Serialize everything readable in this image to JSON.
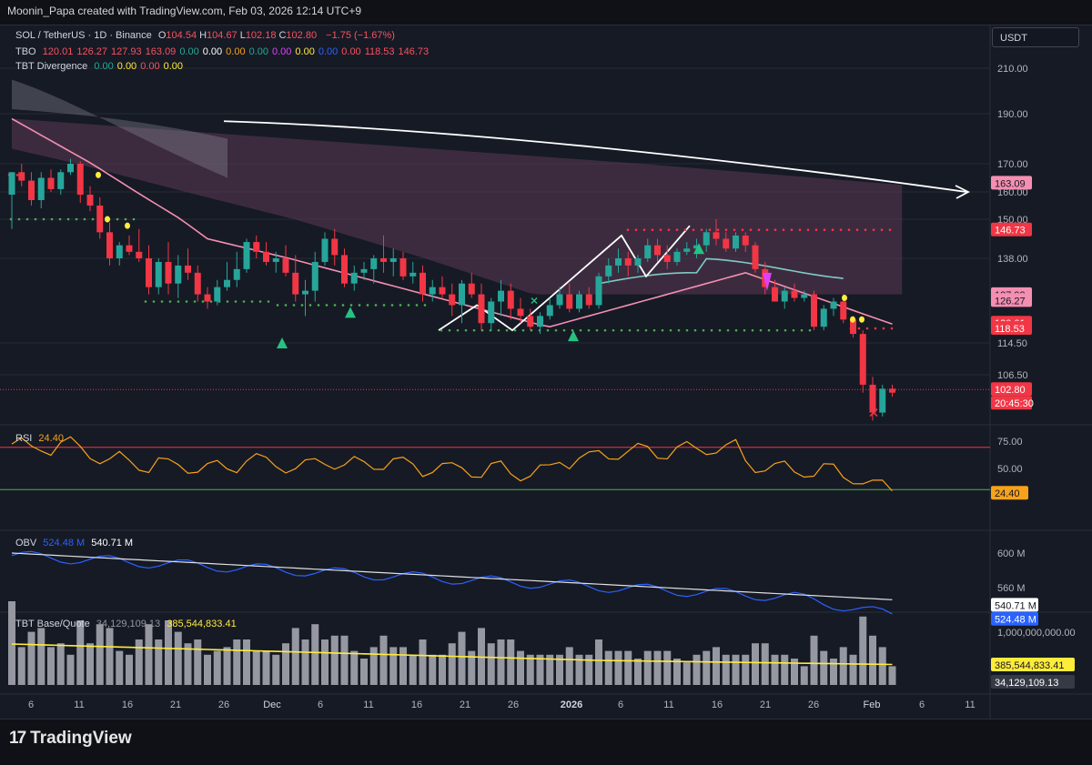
{
  "header": {
    "watermark": "Moonin_Papa created with TradingView.com, Feb 03, 2026 12:14 UTC+9"
  },
  "brand": {
    "name": "TradingView",
    "logo_icon": "tradingview-logo-icon"
  },
  "currency_button": {
    "label": "USDT"
  },
  "legend": {
    "symbol": "SOL / TetherUS · 1D · Binance",
    "ohlc": [
      {
        "k": "O",
        "v": "104.54"
      },
      {
        "k": "H",
        "v": "104.67"
      },
      {
        "k": "L",
        "v": "102.18"
      },
      {
        "k": "C",
        "v": "102.80"
      }
    ],
    "change": "−1.75 (−1.67%)",
    "tbo_label": "TBO",
    "tbo_values": [
      {
        "v": "120.01",
        "c": "#f7525f"
      },
      {
        "v": "126.27",
        "c": "#f7525f"
      },
      {
        "v": "127.93",
        "c": "#f7525f"
      },
      {
        "v": "163.09",
        "c": "#f7525f"
      },
      {
        "v": "0.00",
        "c": "#22ab94"
      },
      {
        "v": "0.00",
        "c": "#ffffff"
      },
      {
        "v": "0.00",
        "c": "#f7a21b"
      },
      {
        "v": "0.00",
        "c": "#22ab94"
      },
      {
        "v": "0.00",
        "c": "#e040fb"
      },
      {
        "v": "0.00",
        "c": "#ffeb3b"
      },
      {
        "v": "0.00",
        "c": "#2962ff"
      },
      {
        "v": "0.00",
        "c": "#f7525f"
      },
      {
        "v": "118.53",
        "c": "#f7525f"
      },
      {
        "v": "146.73",
        "c": "#f7525f"
      }
    ],
    "tbtdiv_label": "TBT Divergence",
    "tbtdiv_values": [
      {
        "v": "0.00",
        "c": "#22ab94"
      },
      {
        "v": "0.00",
        "c": "#ffeb3b"
      },
      {
        "v": "0.00",
        "c": "#f7525f"
      },
      {
        "v": "0.00",
        "c": "#ffeb3b"
      }
    ],
    "rsi_label": "RSI",
    "rsi_value": "24.40",
    "obv_label": "OBV",
    "obv_value1": "524.48 M",
    "obv_value2": "540.71 M",
    "tbt_label": "TBT Base/Quote",
    "tbt_value1": "34,129,109.13",
    "tbt_value2": "385,544,833.41"
  },
  "colors": {
    "up": "#26a69a",
    "down": "#f23645",
    "bg": "#161a25",
    "grid": "#262a35",
    "pink": "#f48fb1",
    "mint": "#80cbc4"
  },
  "chart_data": {
    "type": "candlestick",
    "price_axis": {
      "ticks": [
        "210.00",
        "190.00",
        "170.00",
        "160.00",
        "150.00",
        "138.00",
        "114.50",
        "106.50"
      ],
      "labels": [
        {
          "v": "163.09",
          "bg": "#f48fb1",
          "fg": "#131722"
        },
        {
          "v": "146.73",
          "bg": "#f23645",
          "fg": "#ffffff"
        },
        {
          "v": "127.93",
          "bg": "#f48fb1",
          "fg": "#131722"
        },
        {
          "v": "126.27",
          "bg": "#f48fb1",
          "fg": "#131722"
        },
        {
          "v": "120.01",
          "bg": "#f23645",
          "fg": "#ffffff"
        },
        {
          "v": "118.53",
          "bg": "#f23645",
          "fg": "#ffffff"
        },
        {
          "v": "102.80",
          "bg": "#f23645",
          "fg": "#ffffff"
        },
        {
          "v": "20:45:30",
          "bg": "#f23645",
          "fg": "#ffffff"
        }
      ]
    },
    "time_axis": [
      "6",
      "11",
      "16",
      "21",
      "26",
      "Dec",
      "6",
      "11",
      "16",
      "21",
      "26",
      "2026",
      "6",
      "11",
      "16",
      "21",
      "26",
      "Feb",
      "6",
      "11"
    ],
    "candles": [
      [
        159,
        167,
        147,
        167
      ],
      [
        167,
        170,
        162,
        164
      ],
      [
        164,
        167,
        155,
        157
      ],
      [
        157,
        167,
        154,
        165
      ],
      [
        165,
        168,
        160,
        161
      ],
      [
        161,
        168,
        159,
        167
      ],
      [
        167,
        172,
        166,
        170
      ],
      [
        170,
        171,
        156,
        159
      ],
      [
        159,
        162,
        153,
        155
      ],
      [
        155,
        158,
        144,
        146
      ],
      [
        146,
        149,
        136,
        138
      ],
      [
        138,
        143,
        136,
        142
      ],
      [
        142,
        145,
        139,
        140
      ],
      [
        140,
        147,
        137,
        138
      ],
      [
        138,
        142,
        128,
        130
      ],
      [
        130,
        138,
        128,
        137
      ],
      [
        137,
        143,
        128,
        131
      ],
      [
        131,
        139,
        127,
        136
      ],
      [
        136,
        141,
        132,
        134
      ],
      [
        134,
        136,
        126,
        128
      ],
      [
        128,
        130,
        124,
        126
      ],
      [
        126,
        132,
        125,
        130
      ],
      [
        130,
        137,
        129,
        132
      ],
      [
        132,
        140,
        130,
        135
      ],
      [
        135,
        144,
        134,
        143
      ],
      [
        143,
        145,
        138,
        140
      ],
      [
        140,
        143,
        136,
        137
      ],
      [
        137,
        140,
        134,
        138
      ],
      [
        138,
        142,
        133,
        134
      ],
      [
        134,
        139,
        126,
        128
      ],
      [
        128,
        132,
        122,
        129
      ],
      [
        129,
        140,
        126,
        137
      ],
      [
        137,
        146,
        136,
        144
      ],
      [
        144,
        147,
        136,
        139
      ],
      [
        139,
        141,
        130,
        131
      ],
      [
        131,
        136,
        129,
        134
      ],
      [
        134,
        137,
        132,
        135
      ],
      [
        135,
        139,
        131,
        138
      ],
      [
        138,
        145,
        134,
        137
      ],
      [
        137,
        141,
        133,
        138
      ],
      [
        138,
        140,
        132,
        133
      ],
      [
        133,
        137,
        131,
        134
      ],
      [
        134,
        136,
        126,
        128
      ],
      [
        128,
        132,
        126,
        130
      ],
      [
        130,
        133,
        127,
        128
      ],
      [
        128,
        131,
        122,
        125
      ],
      [
        125,
        132,
        120,
        131
      ],
      [
        131,
        134,
        127,
        128
      ],
      [
        128,
        131,
        118,
        120
      ],
      [
        120,
        127,
        118,
        126
      ],
      [
        126,
        132,
        122,
        129
      ],
      [
        129,
        131,
        121,
        124
      ],
      [
        124,
        127,
        120,
        122
      ],
      [
        122,
        124,
        118,
        119
      ],
      [
        119,
        123,
        117,
        122
      ],
      [
        122,
        127,
        121,
        125
      ],
      [
        125,
        130,
        124,
        128
      ],
      [
        128,
        131,
        123,
        124
      ],
      [
        124,
        129,
        123,
        128
      ],
      [
        128,
        130,
        124,
        125
      ],
      [
        125,
        134,
        124,
        133
      ],
      [
        133,
        138,
        131,
        136
      ],
      [
        136,
        141,
        134,
        138
      ],
      [
        138,
        140,
        133,
        136
      ],
      [
        136,
        139,
        134,
        138
      ],
      [
        138,
        144,
        137,
        142
      ],
      [
        142,
        144,
        137,
        139
      ],
      [
        139,
        142,
        135,
        137
      ],
      [
        137,
        141,
        136,
        140
      ],
      [
        140,
        143,
        139,
        141
      ],
      [
        141,
        144,
        138,
        142
      ],
      [
        142,
        147,
        140,
        146
      ],
      [
        146,
        150,
        142,
        144
      ],
      [
        144,
        146,
        140,
        141
      ],
      [
        141,
        146,
        140,
        145
      ],
      [
        145,
        146,
        140,
        142
      ],
      [
        142,
        143,
        134,
        135
      ],
      [
        135,
        137,
        128,
        130
      ],
      [
        130,
        132,
        126,
        126
      ],
      [
        126,
        130,
        124,
        129
      ],
      [
        129,
        131,
        126,
        127
      ],
      [
        127,
        129,
        126,
        128
      ],
      [
        128,
        129,
        118,
        119
      ],
      [
        119,
        125,
        118,
        124
      ],
      [
        124,
        127,
        122,
        126
      ],
      [
        126,
        128,
        120,
        121
      ],
      [
        121,
        122,
        116,
        117
      ],
      [
        117,
        118,
        102,
        104
      ],
      [
        104,
        106,
        95,
        97
      ],
      [
        97,
        104,
        96,
        103
      ],
      [
        103,
        104,
        101,
        102
      ]
    ],
    "rsi": {
      "levels": [
        "75.00",
        "50.00"
      ],
      "upper": 70,
      "lower": 30,
      "current": "24.40"
    },
    "obv": {
      "ticks": [
        "600 M",
        "560 M"
      ],
      "current_blue": "524.48 M",
      "current_white": "540.71 M"
    },
    "tbt": {
      "ticks": [
        "1,000,000,000.00"
      ],
      "current_yellow": "385,544,833.41",
      "current_gray": "34,129,109.13"
    }
  }
}
